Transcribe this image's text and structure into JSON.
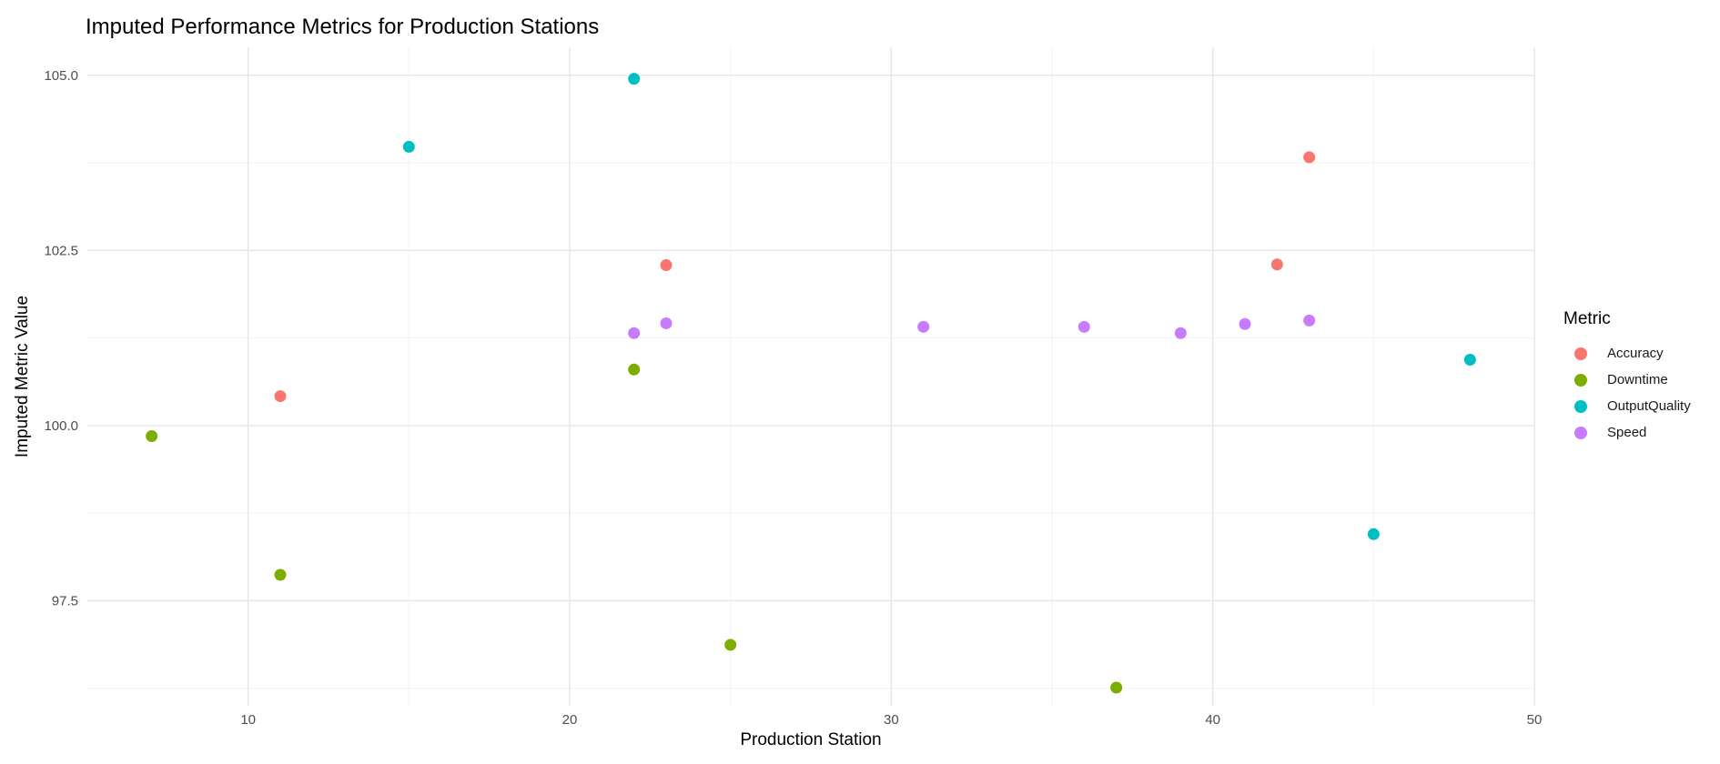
{
  "chart_data": {
    "type": "scatter",
    "title": "Imputed Performance Metrics for Production Stations",
    "xlabel": "Production Station",
    "ylabel": "Imputed Metric Value",
    "xlim": [
      5,
      50
    ],
    "ylim": [
      96.0,
      105.4
    ],
    "x_ticks": [
      10,
      20,
      30,
      40,
      50
    ],
    "y_ticks": [
      97.5,
      100.0,
      102.5,
      105.0
    ],
    "x_tick_labels": [
      "10",
      "20",
      "30",
      "40",
      "50"
    ],
    "y_tick_labels": [
      "97.5",
      "100.0",
      "102.5",
      "105.0"
    ],
    "grid": true,
    "legend": {
      "title": "Metric",
      "placement": "right"
    },
    "series": [
      {
        "name": "Accuracy",
        "color": "#F8766D",
        "points": [
          {
            "x": 11,
            "y": 100.42
          },
          {
            "x": 23,
            "y": 102.29
          },
          {
            "x": 42,
            "y": 102.3
          },
          {
            "x": 43,
            "y": 103.83
          }
        ]
      },
      {
        "name": "Downtime",
        "color": "#7CAE00",
        "points": [
          {
            "x": 7,
            "y": 99.85
          },
          {
            "x": 11,
            "y": 97.87
          },
          {
            "x": 22,
            "y": 100.8
          },
          {
            "x": 25,
            "y": 96.87
          },
          {
            "x": 37,
            "y": 96.26
          }
        ]
      },
      {
        "name": "OutputQuality",
        "color": "#00BFC4",
        "points": [
          {
            "x": 15,
            "y": 103.98
          },
          {
            "x": 22,
            "y": 104.95
          },
          {
            "x": 45,
            "y": 98.45
          },
          {
            "x": 48,
            "y": 100.94
          }
        ]
      },
      {
        "name": "Speed",
        "color": "#C77CFF",
        "points": [
          {
            "x": 22,
            "y": 101.32
          },
          {
            "x": 23,
            "y": 101.46
          },
          {
            "x": 31,
            "y": 101.41
          },
          {
            "x": 36,
            "y": 101.41
          },
          {
            "x": 39,
            "y": 101.32
          },
          {
            "x": 41,
            "y": 101.45
          },
          {
            "x": 43,
            "y": 101.5
          }
        ]
      }
    ]
  }
}
